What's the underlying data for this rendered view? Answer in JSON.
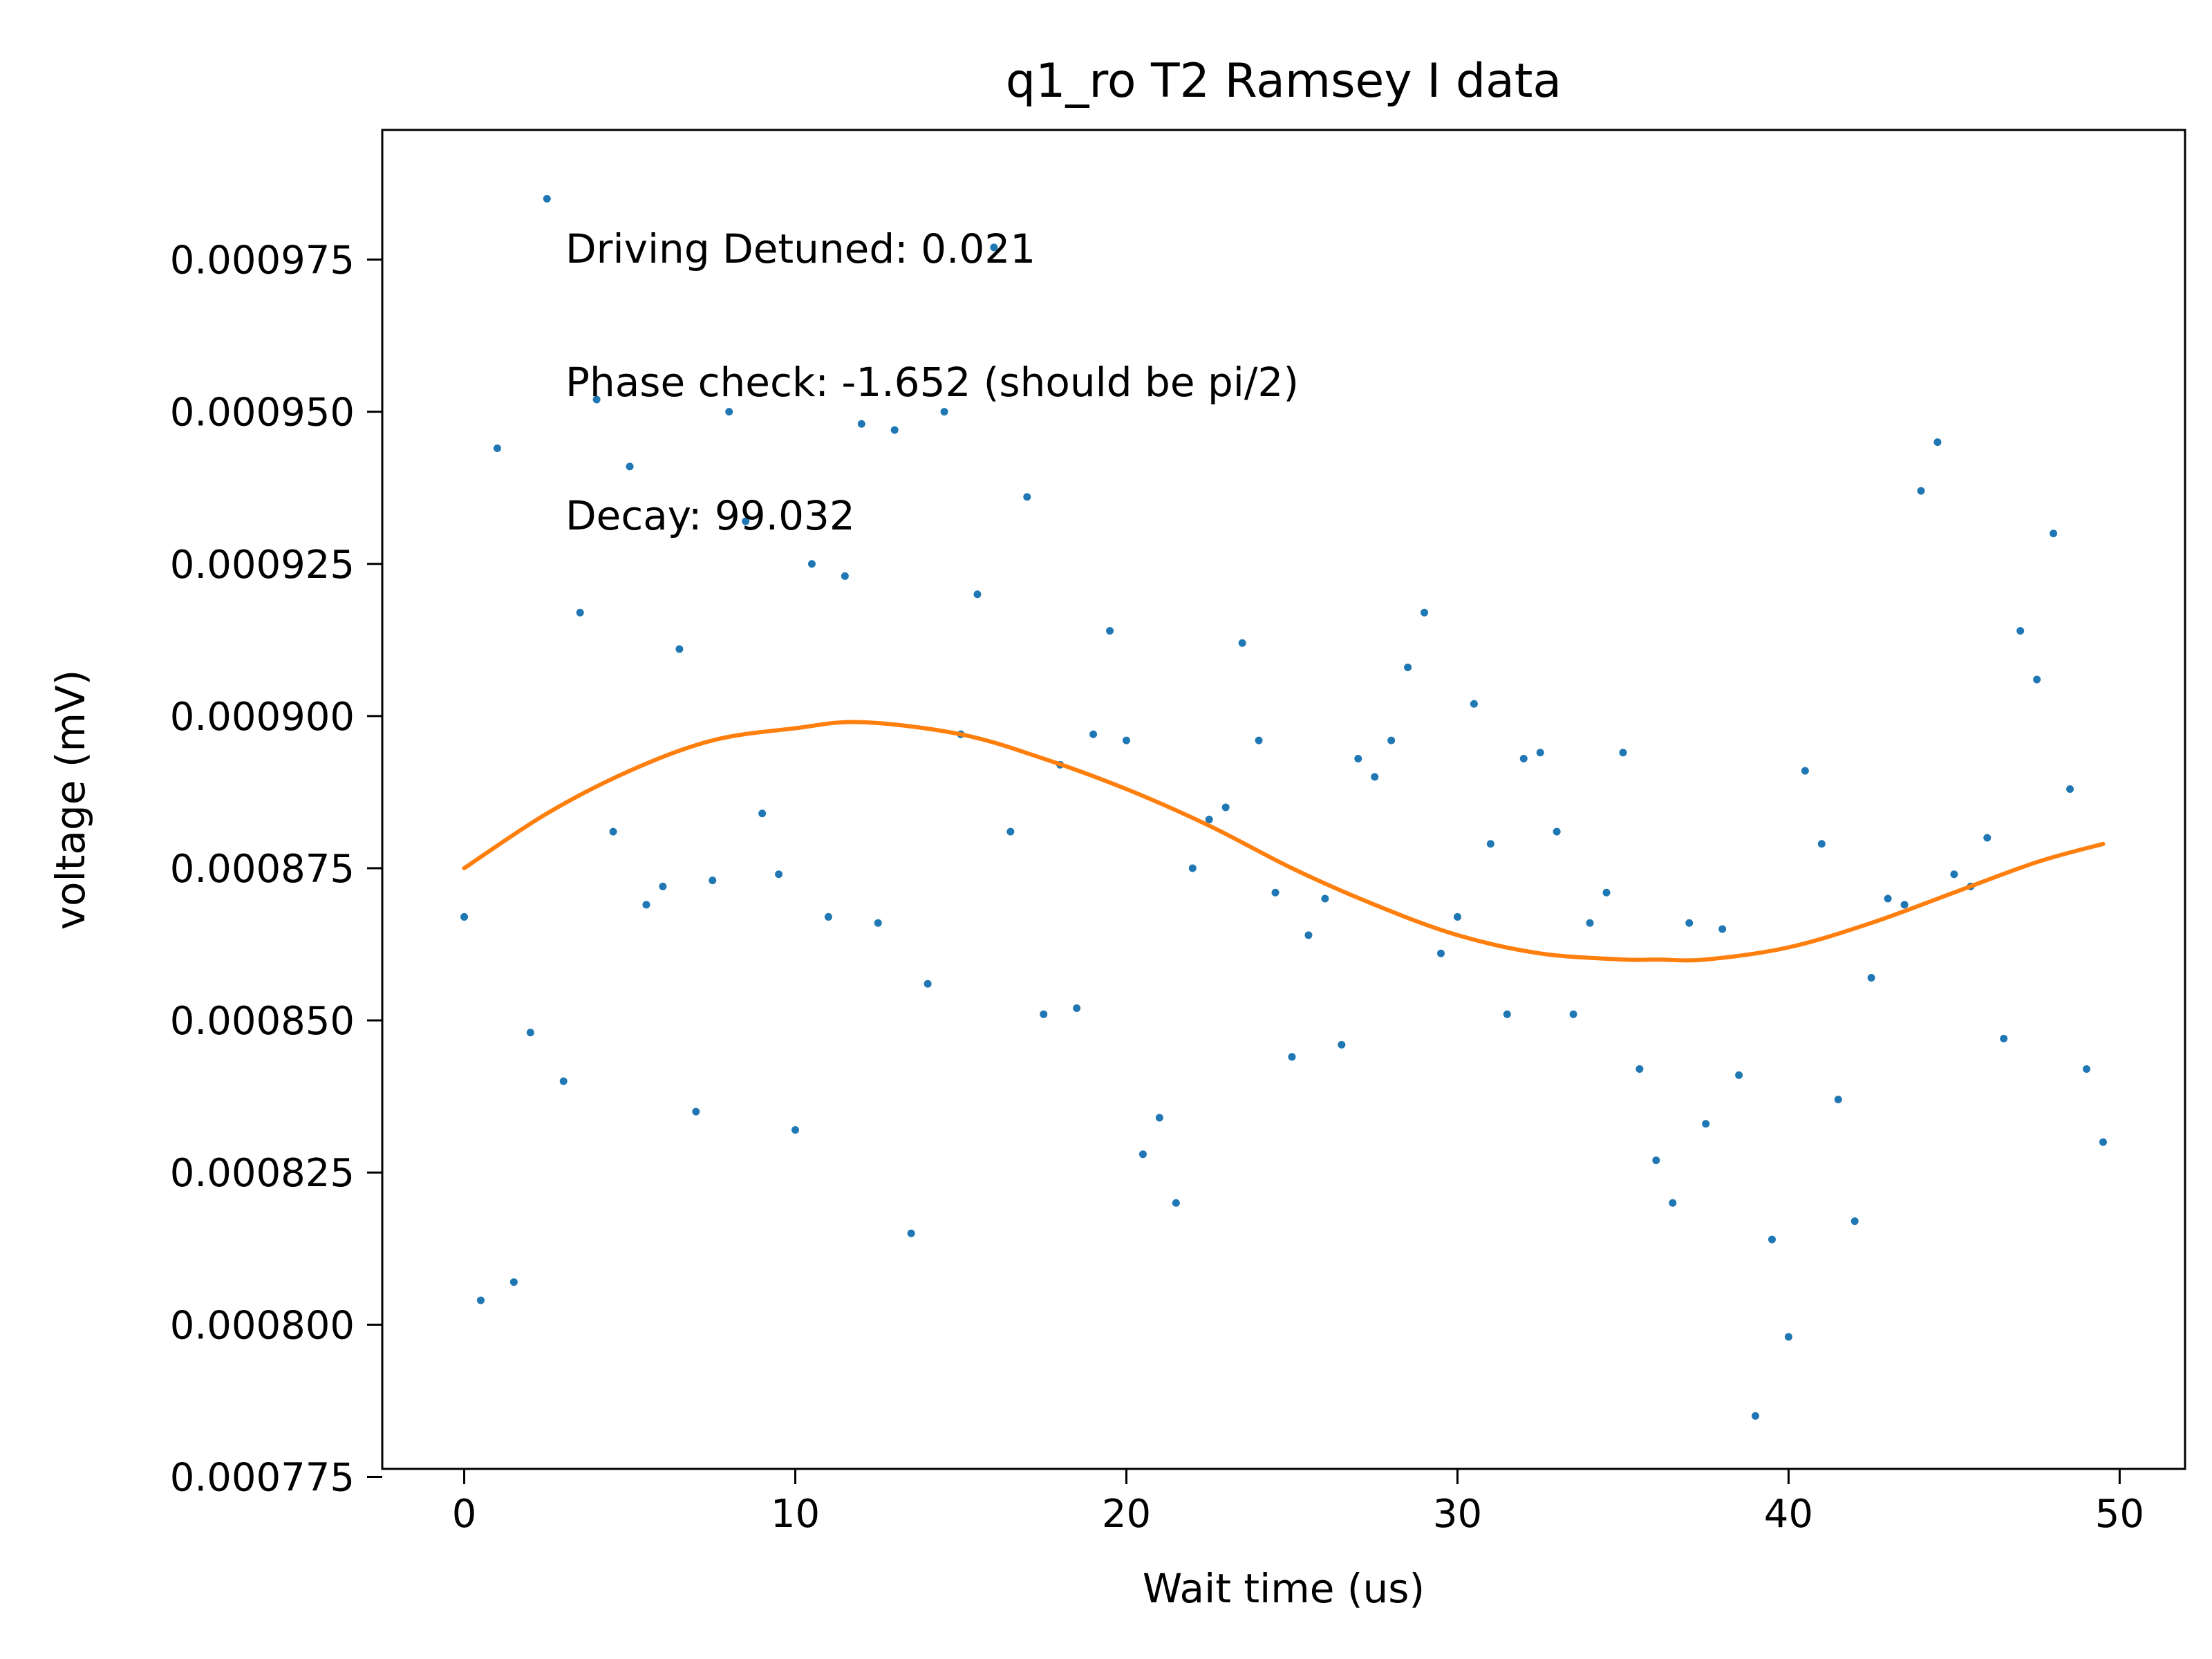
{
  "chart_data": {
    "type": "scatter",
    "title": "q1_ro T2 Ramsey I data",
    "xlabel": "Wait time (us)",
    "ylabel": "voltage (mV)",
    "xlim": [
      -2.475,
      51.975
    ],
    "ylim": [
      0.0007763,
      0.0009963
    ],
    "xticks": [
      0,
      10,
      20,
      30,
      40,
      50
    ],
    "yticks": [
      0.000775,
      0.0008,
      0.000825,
      0.00085,
      0.000875,
      0.0009,
      0.000925,
      0.00095,
      0.000975
    ],
    "xtick_labels": [
      "0",
      "10",
      "20",
      "30",
      "40",
      "50"
    ],
    "ytick_labels": [
      "0.000775",
      "0.000800",
      "0.000825",
      "0.000850",
      "0.000875",
      "0.000900",
      "0.000925",
      "0.000950",
      "0.000975"
    ],
    "annotations": [
      "Driving Detuned: 0.021",
      "Phase check: -1.652 (should be pi/2)",
      "Decay: 99.032"
    ],
    "grid": false,
    "colors": {
      "data": "#1f77b4",
      "fit": "#ff7f0e"
    },
    "series": [
      {
        "kind": "scatter",
        "x": [
          0,
          0.5,
          1,
          1.5,
          2,
          2.5,
          3,
          3.5,
          4,
          4.5,
          5,
          5.5,
          6,
          6.5,
          7,
          7.5,
          8,
          8.5,
          9,
          9.5,
          10,
          10.5,
          11,
          11.5,
          12,
          12.5,
          13,
          13.5,
          14,
          14.5,
          15,
          15.5,
          16,
          16.5,
          17,
          17.5,
          18,
          18.5,
          19,
          19.5,
          20,
          20.5,
          21,
          21.5,
          22,
          22.5,
          23,
          23.5,
          24,
          24.5,
          25,
          25.5,
          26,
          26.5,
          27,
          27.5,
          28,
          28.5,
          29,
          29.5,
          30,
          30.5,
          31,
          31.5,
          32,
          32.5,
          33,
          33.5,
          34,
          34.5,
          35,
          35.5,
          36,
          36.5,
          37,
          37.5,
          38,
          38.5,
          39,
          39.5,
          40,
          40.5,
          41,
          41.5,
          42,
          42.5,
          43,
          43.5,
          44,
          44.5,
          45,
          45.5,
          46,
          46.5,
          47,
          47.5,
          48,
          48.5,
          49,
          49.5
        ],
        "y": [
          0.000867,
          0.000804,
          0.000944,
          0.000807,
          0.000848,
          0.000985,
          0.00084,
          0.000917,
          0.000952,
          0.000881,
          0.000941,
          0.000869,
          0.000872,
          0.000911,
          0.000835,
          0.000873,
          0.00095,
          0.000932,
          0.000884,
          0.000874,
          0.000832,
          0.000925,
          0.000867,
          0.000923,
          0.000948,
          0.000866,
          0.000947,
          0.000815,
          0.000856,
          0.00095,
          0.000897,
          0.00092,
          0.000977,
          0.000881,
          0.000936,
          0.000851,
          0.000892,
          0.000852,
          0.000897,
          0.000914,
          0.000896,
          0.000828,
          0.000834,
          0.00082,
          0.000875,
          0.000883,
          0.000885,
          0.000912,
          0.000896,
          0.000871,
          0.000844,
          0.000864,
          0.00087,
          0.000846,
          0.000893,
          0.00089,
          0.000896,
          0.000908,
          0.000917,
          0.000861,
          0.000867,
          0.000902,
          0.000879,
          0.000851,
          0.000893,
          0.000894,
          0.000881,
          0.000851,
          0.000866,
          0.000871,
          0.000894,
          0.000842,
          0.000827,
          0.00082,
          0.000866,
          0.000833,
          0.000865,
          0.000841,
          0.000785,
          0.000814,
          0.000798,
          0.000891,
          0.000879,
          0.000837,
          0.000817,
          0.000857,
          0.00087,
          0.000869,
          0.000937,
          0.000945,
          0.000874,
          0.000872,
          0.00088,
          0.000847,
          0.000914,
          0.000906,
          0.00093,
          0.000888,
          0.000842,
          0.00083
        ]
      },
      {
        "kind": "line",
        "x": [
          0,
          2.5,
          5,
          7.5,
          10,
          12,
          15,
          17.5,
          20,
          22.5,
          25,
          27.5,
          30,
          32.5,
          35,
          36,
          37.5,
          40,
          42.5,
          45,
          47.5,
          49.5
        ],
        "y": [
          0.000875,
          0.000884,
          0.000891,
          0.000896,
          0.000898,
          0.000899,
          0.000897,
          0.000893,
          0.000888,
          0.000882,
          0.000875,
          0.000869,
          0.000864,
          0.000861,
          0.00086,
          0.00086,
          0.00086,
          0.000862,
          0.000866,
          0.000871,
          0.000876,
          0.000879
        ]
      }
    ]
  }
}
